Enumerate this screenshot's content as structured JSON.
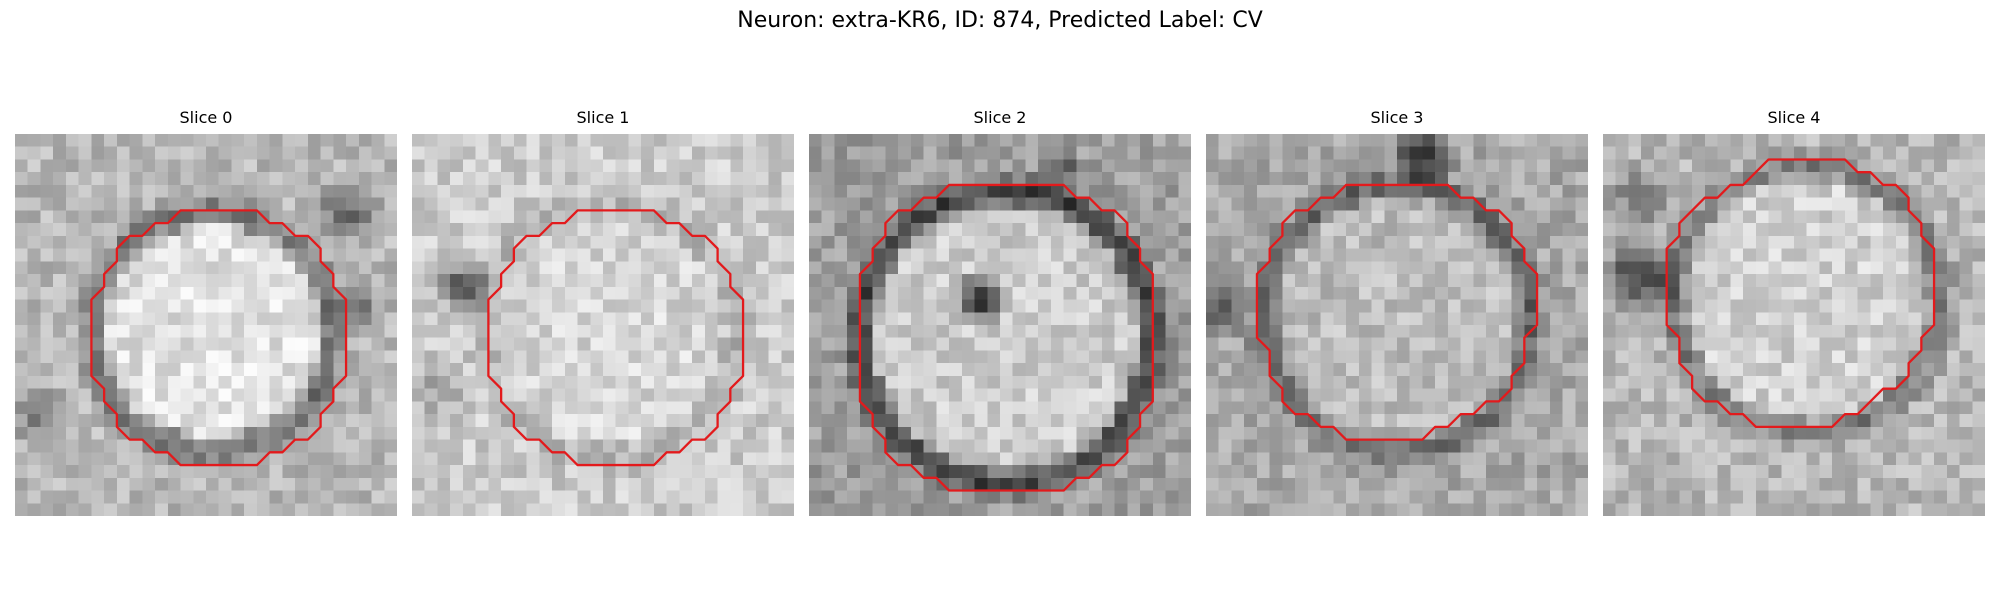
{
  "figure": {
    "title": "Neuron: extra-KR6, ID: 874, Predicted Label: CV"
  },
  "colors": {
    "outline": "#e31a1c",
    "colormap": "grayscale"
  },
  "panels": [
    {
      "title": "Slice 0"
    },
    {
      "title": "Slice 1"
    },
    {
      "title": "Slice 2"
    },
    {
      "title": "Slice 3"
    },
    {
      "title": "Slice 4"
    }
  ]
}
